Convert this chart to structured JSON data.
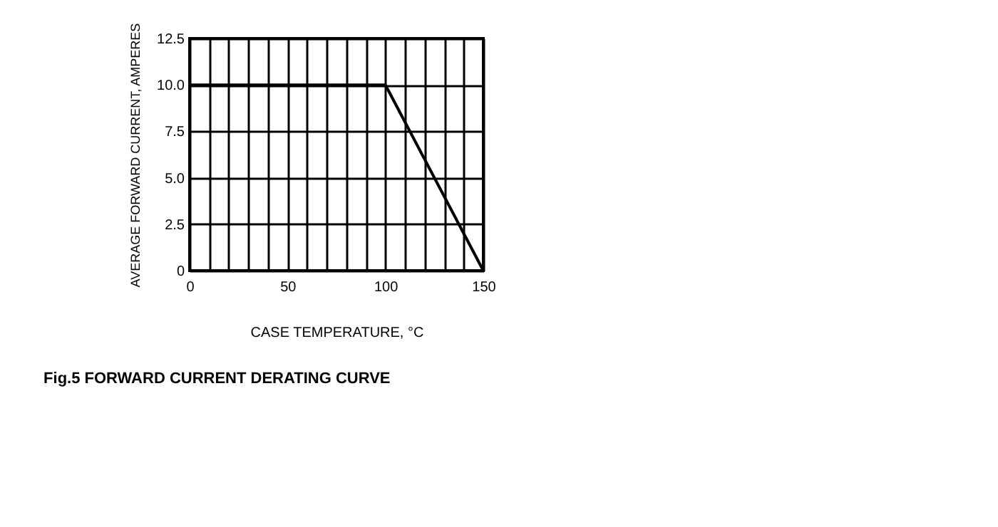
{
  "chart_data": {
    "type": "line",
    "title": "Fig.5 FORWARD  CURRENT  DERATING  CURVE",
    "xlabel": "CASE TEMPERATURE, °C",
    "ylabel": "AVERAGE FORWARD CURRENT, AMPERES",
    "x": [
      0,
      100,
      150
    ],
    "series": [
      {
        "color": "#000000",
        "values": [
          10,
          10,
          0
        ]
      }
    ],
    "xlim": [
      0,
      150
    ],
    "xticks": [
      0,
      {
        "value": 10,
        "label": null
      },
      {
        "value": 20,
        "label": null
      },
      {
        "value": 30,
        "label": null
      },
      {
        "value": 40,
        "label": null
      },
      50,
      {
        "value": 60,
        "label": null
      },
      {
        "value": 70,
        "label": null
      },
      {
        "value": 80,
        "label": null
      },
      {
        "value": 90,
        "label": null
      },
      100,
      {
        "value": 110,
        "label": null
      },
      {
        "value": 120,
        "label": null
      },
      {
        "value": 130,
        "label": null
      },
      {
        "value": 140,
        "label": null
      },
      150
    ],
    "ylim": [
      0,
      12.5
    ],
    "yticks": [
      0,
      2.5,
      {
        "value": 5,
        "label": "5.0"
      },
      7.5,
      {
        "value": 10,
        "label": "10.0"
      },
      12.5
    ],
    "grid": true,
    "marker": "none",
    "line_style": "solid"
  }
}
